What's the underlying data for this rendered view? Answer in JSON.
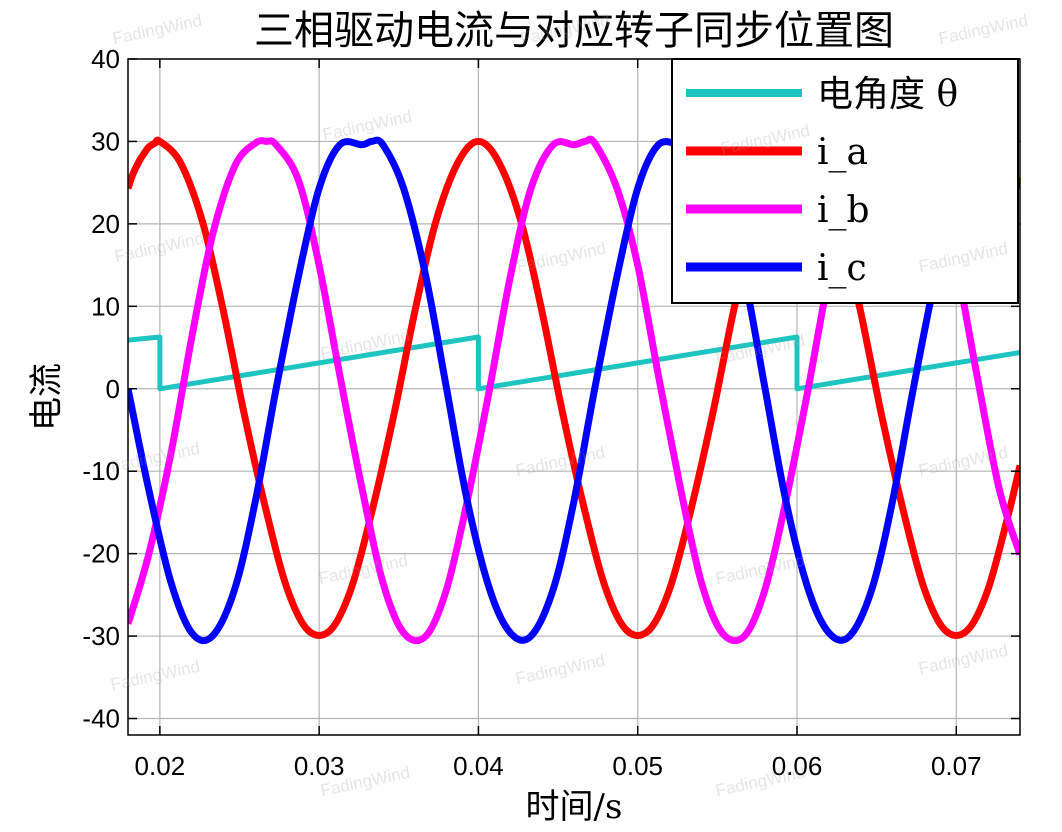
{
  "chart_data": {
    "type": "line",
    "title": "三相驱动电流与对应转子同步位置图",
    "xlabel": "时间/s",
    "ylabel": "电流",
    "xlim": [
      0.018,
      0.074
    ],
    "ylim": [
      -42,
      40
    ],
    "xticks": [
      0.02,
      0.03,
      0.04,
      0.05,
      0.06,
      0.07
    ],
    "xtick_labels": [
      "0.02",
      "0.03",
      "0.04",
      "0.05",
      "0.06",
      "0.07"
    ],
    "yticks": [
      -40,
      -30,
      -20,
      -10,
      0,
      10,
      20,
      30,
      40
    ],
    "ytick_labels": [
      "-40",
      "-30",
      "-20",
      "-10",
      "0",
      "10",
      "20",
      "30",
      "40"
    ],
    "grid": true,
    "legend_position": "top-right",
    "series": [
      {
        "name": "电角度 θ",
        "color": "#1ec4c0",
        "x": [
          0.018,
          0.02,
          0.02,
          0.04,
          0.04,
          0.06,
          0.06,
          0.074
        ],
        "y": [
          5.9,
          6.28,
          0,
          6.28,
          0,
          6.28,
          0,
          4.4
        ]
      },
      {
        "name": "i_a",
        "color": "#ff0000",
        "x": [
          0.018,
          0.0183,
          0.0187,
          0.019,
          0.0193,
          0.0197,
          0.02,
          0.0213,
          0.0227,
          0.024,
          0.0253,
          0.0267,
          0.028,
          0.0293,
          0.0307,
          0.032,
          0.0333,
          0.0347,
          0.036,
          0.0373,
          0.0387,
          0.04,
          0.0413,
          0.0427,
          0.044,
          0.0453,
          0.0467,
          0.048,
          0.0493,
          0.0507,
          0.052,
          0.0533,
          0.0547,
          0.056,
          0.0573,
          0.0587,
          0.06,
          0.0613,
          0.0627,
          0.064,
          0.0653,
          0.0667,
          0.068,
          0.0693,
          0.0707,
          0.072,
          0.0733,
          0.074
        ],
        "y": [
          24.3,
          26.0,
          27.6,
          28.5,
          29.3,
          29.8,
          30,
          27.4,
          20.1,
          9.3,
          -3.1,
          -15.0,
          -24.3,
          -29.3,
          -29.3,
          -24.3,
          -15.0,
          -3.1,
          9.3,
          20.1,
          27.4,
          30,
          27.4,
          20.1,
          9.3,
          -3.1,
          -15.0,
          -24.3,
          -29.3,
          -29.3,
          -24.3,
          -15.0,
          -3.1,
          9.3,
          20.1,
          27.4,
          30,
          27.4,
          20.1,
          9.3,
          -3.1,
          -15.0,
          -24.3,
          -29.3,
          -29.3,
          -24.3,
          -15.0,
          -9.3
        ]
      },
      {
        "name": "i_b",
        "color": "#ff00ff",
        "x": [
          0.018,
          0.0193,
          0.0207,
          0.022,
          0.0233,
          0.0247,
          0.026,
          0.0267,
          0.0273,
          0.0287,
          0.03,
          0.0313,
          0.0327,
          0.034,
          0.0353,
          0.0367,
          0.038,
          0.0393,
          0.0407,
          0.042,
          0.0433,
          0.0447,
          0.046,
          0.0467,
          0.0473,
          0.0487,
          0.05,
          0.0513,
          0.0527,
          0.054,
          0.0553,
          0.0567,
          0.058,
          0.0593,
          0.0607,
          0.062,
          0.0633,
          0.0647,
          0.066,
          0.0667,
          0.0673,
          0.0687,
          0.07,
          0.0713,
          0.0727,
          0.074
        ],
        "y": [
          -28.5,
          -20.1,
          -7.8,
          6.2,
          18.6,
          27.0,
          29.8,
          30,
          29.6,
          25.3,
          15.0,
          1.6,
          -12.2,
          -23.5,
          -29.6,
          -30,
          -24.3,
          -13.6,
          0,
          13.6,
          24.3,
          29.6,
          29.6,
          30,
          29.8,
          24.3,
          15.0,
          1.6,
          -12.2,
          -23.5,
          -29.6,
          -30,
          -24.3,
          -13.6,
          0,
          13.6,
          24.3,
          29.6,
          29.6,
          30,
          29.8,
          24.3,
          15.0,
          1.6,
          -12.2,
          -20.1
        ]
      },
      {
        "name": "i_c",
        "color": "#0000ff",
        "x": [
          0.018,
          0.0193,
          0.0207,
          0.022,
          0.0233,
          0.0247,
          0.026,
          0.0273,
          0.0287,
          0.03,
          0.0313,
          0.0327,
          0.0333,
          0.034,
          0.0353,
          0.0367,
          0.038,
          0.0393,
          0.0407,
          0.042,
          0.0433,
          0.0447,
          0.046,
          0.0473,
          0.0487,
          0.05,
          0.0513,
          0.0527,
          0.0533,
          0.054,
          0.0553,
          0.0567,
          0.058,
          0.0593,
          0.0607,
          0.062,
          0.0633,
          0.0647,
          0.066,
          0.0673,
          0.0687,
          0.07,
          0.0713,
          0.0727,
          0.074
        ],
        "y": [
          0,
          -12.2,
          -23.5,
          -29.6,
          -30,
          -24.3,
          -13.6,
          0,
          13.6,
          24.3,
          29.6,
          29.6,
          30,
          29.6,
          24.3,
          13.6,
          0,
          -13.6,
          -24.3,
          -29.6,
          -30,
          -24.3,
          -13.6,
          0,
          13.6,
          24.3,
          29.6,
          29.6,
          30,
          29.6,
          24.3,
          13.6,
          0,
          -13.6,
          -24.3,
          -29.6,
          -30,
          -24.3,
          -13.6,
          0,
          13.6,
          24.3,
          29.6,
          29.6,
          24.3
        ]
      }
    ]
  },
  "watermark": "FadingWind"
}
